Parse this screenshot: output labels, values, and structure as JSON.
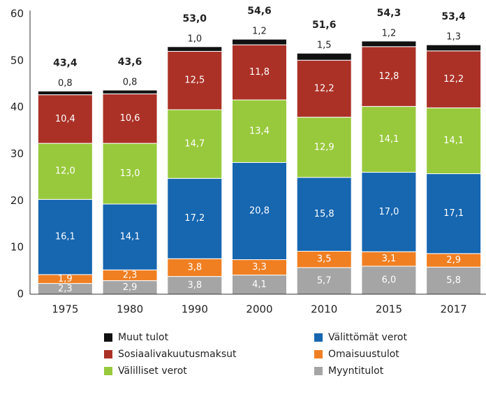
{
  "chart_data": {
    "type": "stacked_bar",
    "categories": [
      "1975",
      "1980",
      "1990",
      "2000",
      "2010",
      "2015",
      "2017"
    ],
    "series": [
      {
        "name": "Myyntitulot",
        "color": "#a5a5a5",
        "values": [
          2.3,
          2.9,
          3.8,
          4.1,
          5.7,
          6.0,
          5.8
        ],
        "value_labels": [
          "2,3",
          "2,9",
          "3,8",
          "4,1",
          "5,7",
          "6,0",
          "5,8"
        ]
      },
      {
        "name": "Omaisuustulot",
        "color": "#f07f22",
        "values": [
          1.9,
          2.3,
          3.8,
          3.3,
          3.5,
          3.1,
          2.9
        ],
        "value_labels": [
          "1,9",
          "2,3",
          "3,8",
          "3,3",
          "3,5",
          "3,1",
          "2,9"
        ]
      },
      {
        "name": "Välittömät verot",
        "color": "#1666b0",
        "values": [
          16.1,
          14.1,
          17.2,
          20.8,
          15.8,
          17.0,
          17.1
        ],
        "value_labels": [
          "16,1",
          "14,1",
          "17,2",
          "20,8",
          "15,8",
          "17,0",
          "17,1"
        ]
      },
      {
        "name": "Välilliset verot",
        "color": "#98c93c",
        "values": [
          12.0,
          13.0,
          14.7,
          13.4,
          12.9,
          14.1,
          14.1
        ],
        "value_labels": [
          "12,0",
          "13,0",
          "14,7",
          "13,4",
          "12,9",
          "14,1",
          "14,1"
        ]
      },
      {
        "name": "Sosiaalivakuutusmaksut",
        "color": "#ab3127",
        "values": [
          10.4,
          10.6,
          12.5,
          11.8,
          12.2,
          12.8,
          12.2
        ],
        "value_labels": [
          "10,4",
          "10,6",
          "12,5",
          "11,8",
          "12,2",
          "12,8",
          "12,2"
        ]
      },
      {
        "name": "Muut tulot",
        "color": "#111111",
        "values": [
          0.8,
          0.8,
          1.0,
          1.2,
          1.5,
          1.2,
          1.3
        ],
        "value_labels": [
          "0,8",
          "0,8",
          "1,0",
          "1,2",
          "1,5",
          "1,2",
          "1,3"
        ]
      }
    ],
    "totals": [
      43.4,
      43.6,
      53.0,
      54.6,
      51.6,
      54.3,
      53.4
    ],
    "total_labels": [
      "43,4",
      "43,6",
      "53,0",
      "54,6",
      "51,6",
      "54,3",
      "53,4"
    ],
    "ylim": [
      0,
      60
    ],
    "yticks": [
      0,
      10,
      20,
      30,
      40,
      50,
      60
    ],
    "grid": false
  }
}
